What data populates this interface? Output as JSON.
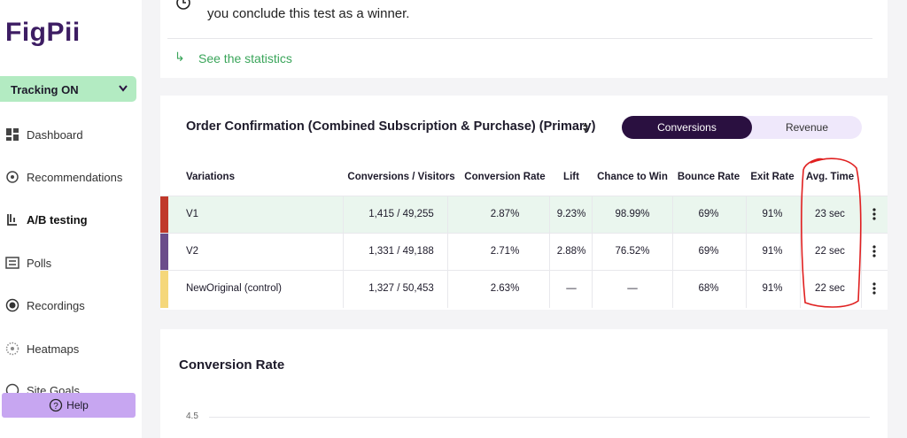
{
  "sidebar": {
    "logo": "FigPii",
    "tracking": "Tracking ON",
    "nav": [
      "Dashboard",
      "Recommendations",
      "A/B testing",
      "Polls",
      "Recordings",
      "Heatmaps",
      "Site Goals"
    ],
    "help": "Help"
  },
  "notice": {
    "text": "you conclude this test as a winner.",
    "link": "See the statistics"
  },
  "results": {
    "title": "Order Confirmation (Combined Subscription & Purchase) (Primary)",
    "toggle": [
      "Conversions",
      "Revenue"
    ],
    "headers": [
      "Variations",
      "Conversions / Visitors",
      "Conversion Rate",
      "Lift",
      "Chance to Win",
      "Bounce Rate",
      "Exit Rate",
      "Avg. Time"
    ],
    "rows": [
      [
        "V1",
        "1,415 / 49,255",
        "2.87%",
        "9.23%",
        "98.99%",
        "69%",
        "91%",
        "23 sec"
      ],
      [
        "V2",
        "1,331 / 49,188",
        "2.71%",
        "2.88%",
        "76.52%",
        "69%",
        "91%",
        "22 sec"
      ],
      [
        "NewOriginal (control)",
        "1,327 / 50,453",
        "2.63%",
        "—",
        "—",
        "68%",
        "91%",
        "22 sec"
      ]
    ]
  },
  "chart": {
    "title": "Conversion Rate",
    "ytick": 4.5
  }
}
